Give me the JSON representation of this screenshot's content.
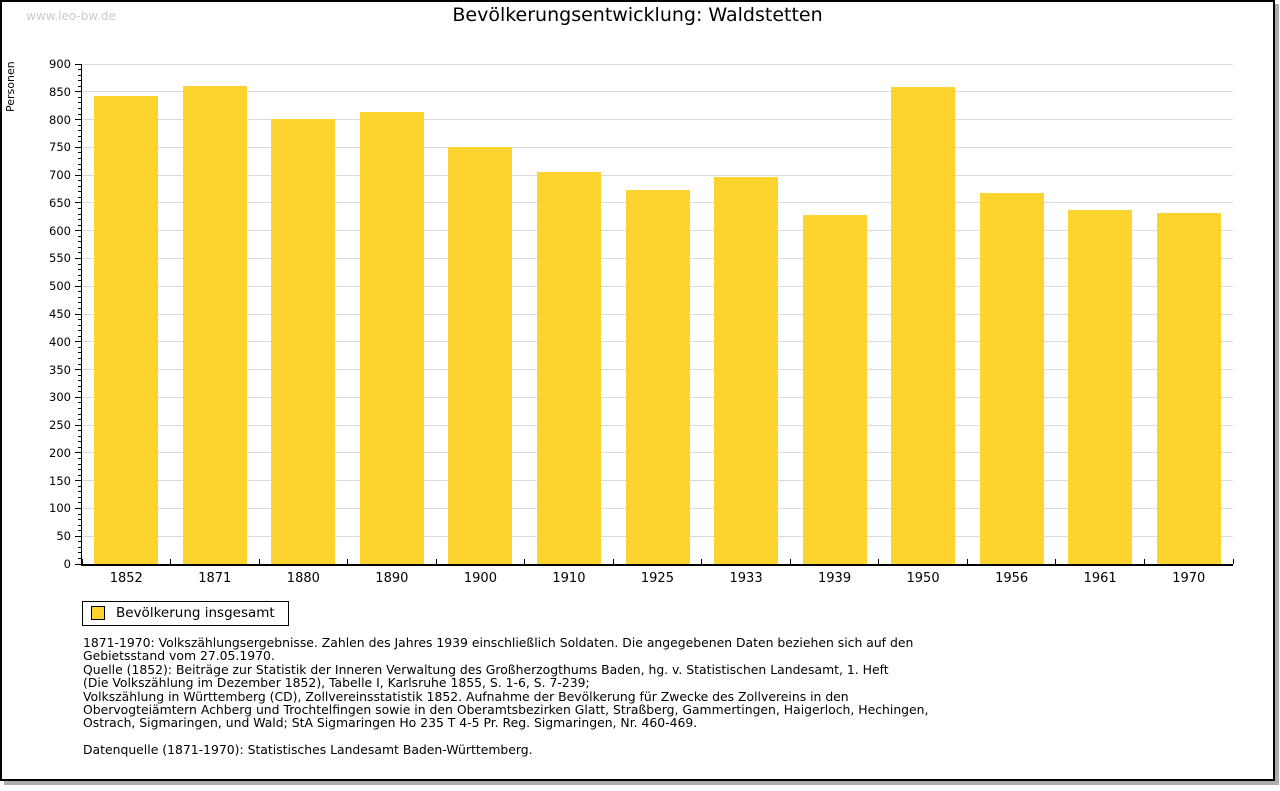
{
  "watermark": "www.leo-bw.de",
  "title": "Bevölkerungsentwicklung: Waldstetten",
  "chart_data": {
    "type": "bar",
    "title": "Bevölkerungsentwicklung: Waldstetten",
    "categories": [
      "1852",
      "1871",
      "1880",
      "1890",
      "1900",
      "1910",
      "1925",
      "1933",
      "1939",
      "1950",
      "1956",
      "1961",
      "1970"
    ],
    "values": [
      843,
      860,
      801,
      813,
      750,
      706,
      673,
      696,
      628,
      859,
      668,
      638,
      631
    ],
    "xlabel": "",
    "ylabel": "Personen",
    "ylim": [
      0,
      900
    ],
    "ytick_step": 50,
    "yminor_step": 10,
    "grid": true,
    "legend_position": "bottom-left",
    "legend": [
      {
        "label": "Bevölkerung insgesamt",
        "color": "#fcd32f"
      }
    ],
    "colors": {
      "bar": "#fcd32f",
      "grid": "#dbdbdb",
      "axis": "#000000"
    }
  },
  "footnotes": {
    "paragraphs": [
      [
        "1871-1970: Volkszählungsergebnisse. Zahlen des Jahres 1939 einschließlich Soldaten. Die angegebenen Daten beziehen sich auf den",
        "Gebietsstand vom 27.05.1970.",
        "Quelle (1852): Beiträge zur Statistik der Inneren Verwaltung des Großherzogthums Baden, hg. v. Statistischen Landesamt, 1. Heft",
        "(Die Volkszählung im Dezember 1852), Tabelle I, Karlsruhe 1855, S. 1-6, S. 7-239;",
        "Volkszählung in Württemberg (CD), Zollvereinsstatistik 1852. Aufnahme der Bevölkerung für Zwecke des Zollvereins in den",
        "Obervogteiämtern Achberg und Trochtelfingen sowie in den Oberamtsbezirken Glatt, Straßberg, Gammertingen, Haigerloch, Hechingen,",
        "Ostrach, Sigmaringen, und Wald; StA Sigmaringen Ho 235 T 4-5 Pr. Reg. Sigmaringen, Nr. 460-469."
      ],
      [
        "Datenquelle (1871-1970): Statistisches Landesamt Baden-Württemberg."
      ]
    ]
  }
}
